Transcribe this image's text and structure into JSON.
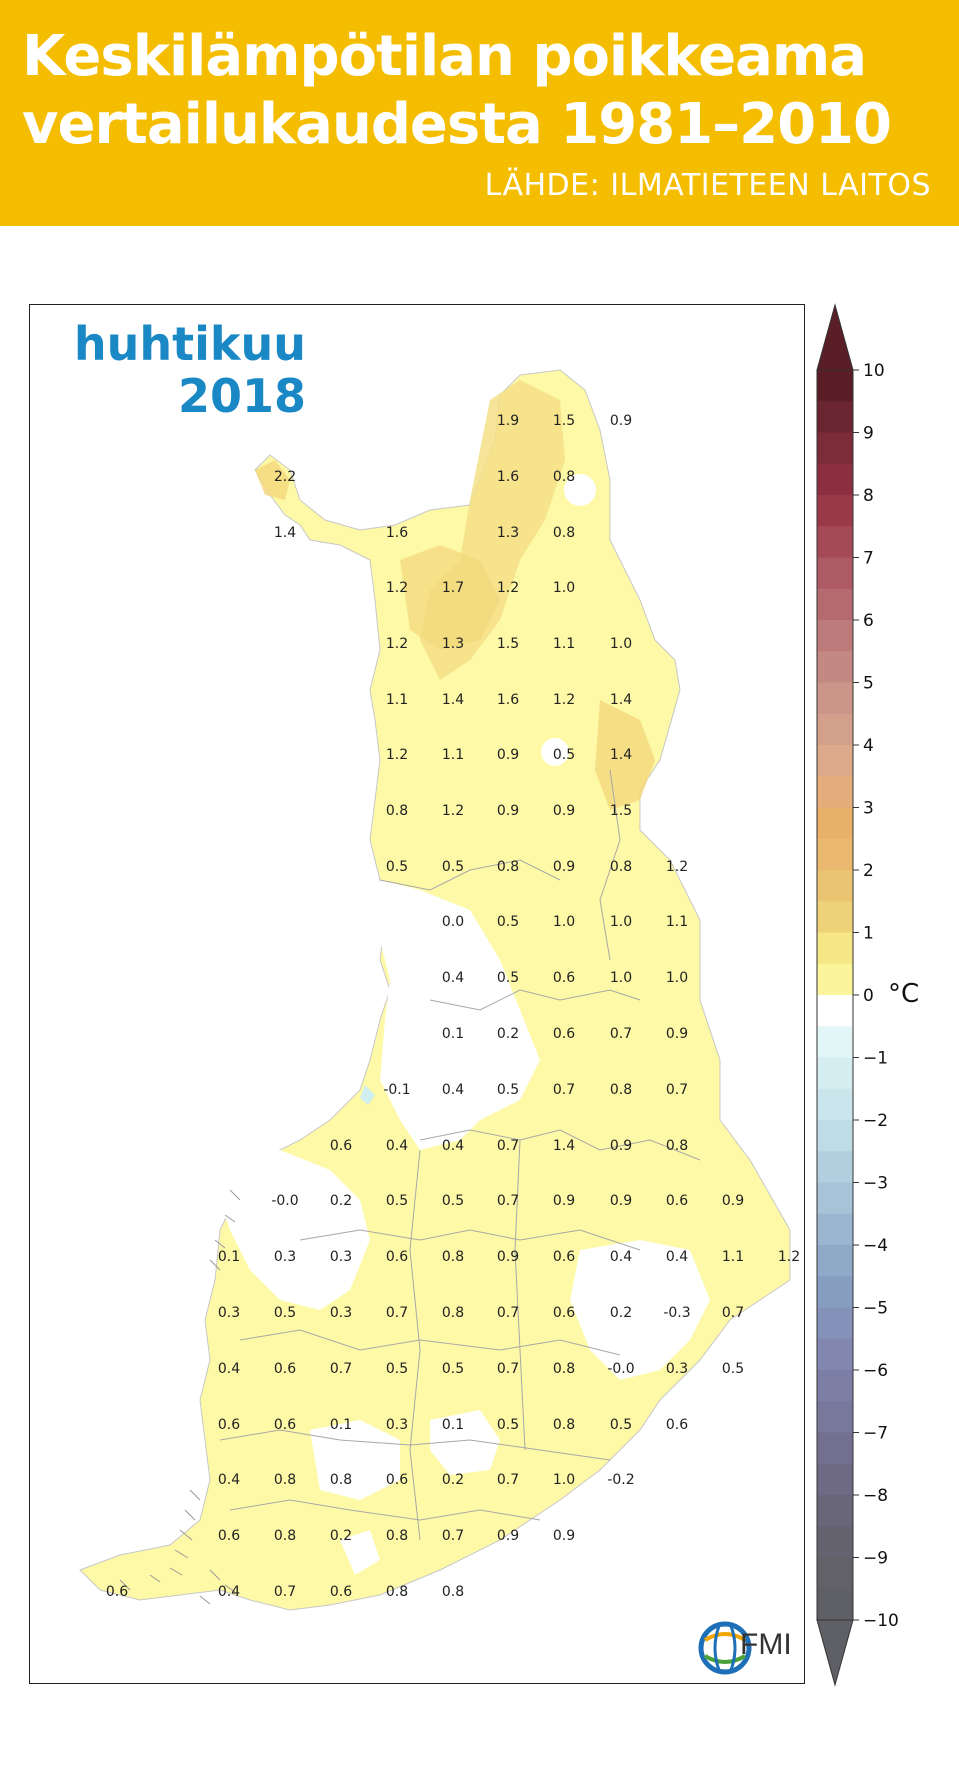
{
  "header": {
    "title_line1": "Keskilämpötilan poikkeama",
    "title_line2": "vertailukaudesta 1981–2010",
    "source": "LÄHDE: ILMATIETEEN LAITOS"
  },
  "map": {
    "month": "huhtikuu",
    "year": "2018",
    "unit": "°C",
    "logo_text": "FMI",
    "values": [
      [
        "1.9",
        "1.5",
        "0.9",
        "2.2",
        "1.6",
        "0.8",
        "1.4",
        "1.6",
        "1.3",
        "0.8"
      ],
      [
        "1.2",
        "1.7",
        "1.2",
        "1.0",
        "1.2",
        "1.3",
        "1.5",
        "1.1",
        "1.0"
      ],
      [
        "1.1",
        "1.4",
        "1.6",
        "1.2",
        "1.4",
        "1.2",
        "1.1",
        "0.9",
        "0.5",
        "1.4"
      ],
      [
        "0.8",
        "1.2",
        "0.9",
        "0.9",
        "1.5",
        "0.5",
        "0.5",
        "0.8",
        "0.9",
        "0.8",
        "1.2"
      ],
      [
        "0.0",
        "0.5",
        "1.0",
        "1.0",
        "1.1",
        "0.4",
        "0.5",
        "0.6",
        "1.0",
        "1.0"
      ],
      [
        "0.1",
        "0.2",
        "0.6",
        "0.7",
        "0.9",
        "-0.1",
        "0.4",
        "0.5",
        "0.7",
        "0.8",
        "0.7"
      ],
      [
        "0.6",
        "0.4",
        "0.4",
        "0.7",
        "1.4",
        "0.9",
        "0.8"
      ],
      [
        "-0.0",
        "0.2",
        "0.5",
        "0.5",
        "0.7",
        "0.9",
        "0.9",
        "0.6",
        "0.9"
      ],
      [
        "0.1",
        "0.3",
        "0.3",
        "0.6",
        "0.8",
        "0.9",
        "0.6",
        "0.4",
        "0.4",
        "1.1",
        "1.2"
      ],
      [
        "0.3",
        "0.5",
        "0.3",
        "0.7",
        "0.8",
        "0.7",
        "0.6",
        "0.2",
        "-0.3",
        "0.7"
      ],
      [
        "0.4",
        "0.6",
        "0.7",
        "0.5",
        "0.5",
        "0.7",
        "0.8",
        "-0.0",
        "0.3",
        "0.5"
      ],
      [
        "0.6",
        "0.6",
        "0.1",
        "0.3",
        "0.1",
        "0.5",
        "0.8",
        "0.5",
        "0.6"
      ],
      [
        "0.4",
        "0.8",
        "0.8",
        "0.6",
        "0.2",
        "0.7",
        "1.0",
        "-0.2"
      ],
      [
        "0.6",
        "0.8",
        "0.2",
        "0.8",
        "0.7",
        "0.9",
        "0.9"
      ],
      [
        "0.6",
        "0.4",
        "0.7",
        "0.6",
        "0.8",
        "0.8"
      ]
    ]
  },
  "colorbar": {
    "ticks": [
      "10",
      "9",
      "8",
      "7",
      "6",
      "5",
      "4",
      "3",
      "2",
      "1",
      "0",
      "−1",
      "−2",
      "−3",
      "−4",
      "−5",
      "−6",
      "−7",
      "−8",
      "−9",
      "−10"
    ]
  }
}
